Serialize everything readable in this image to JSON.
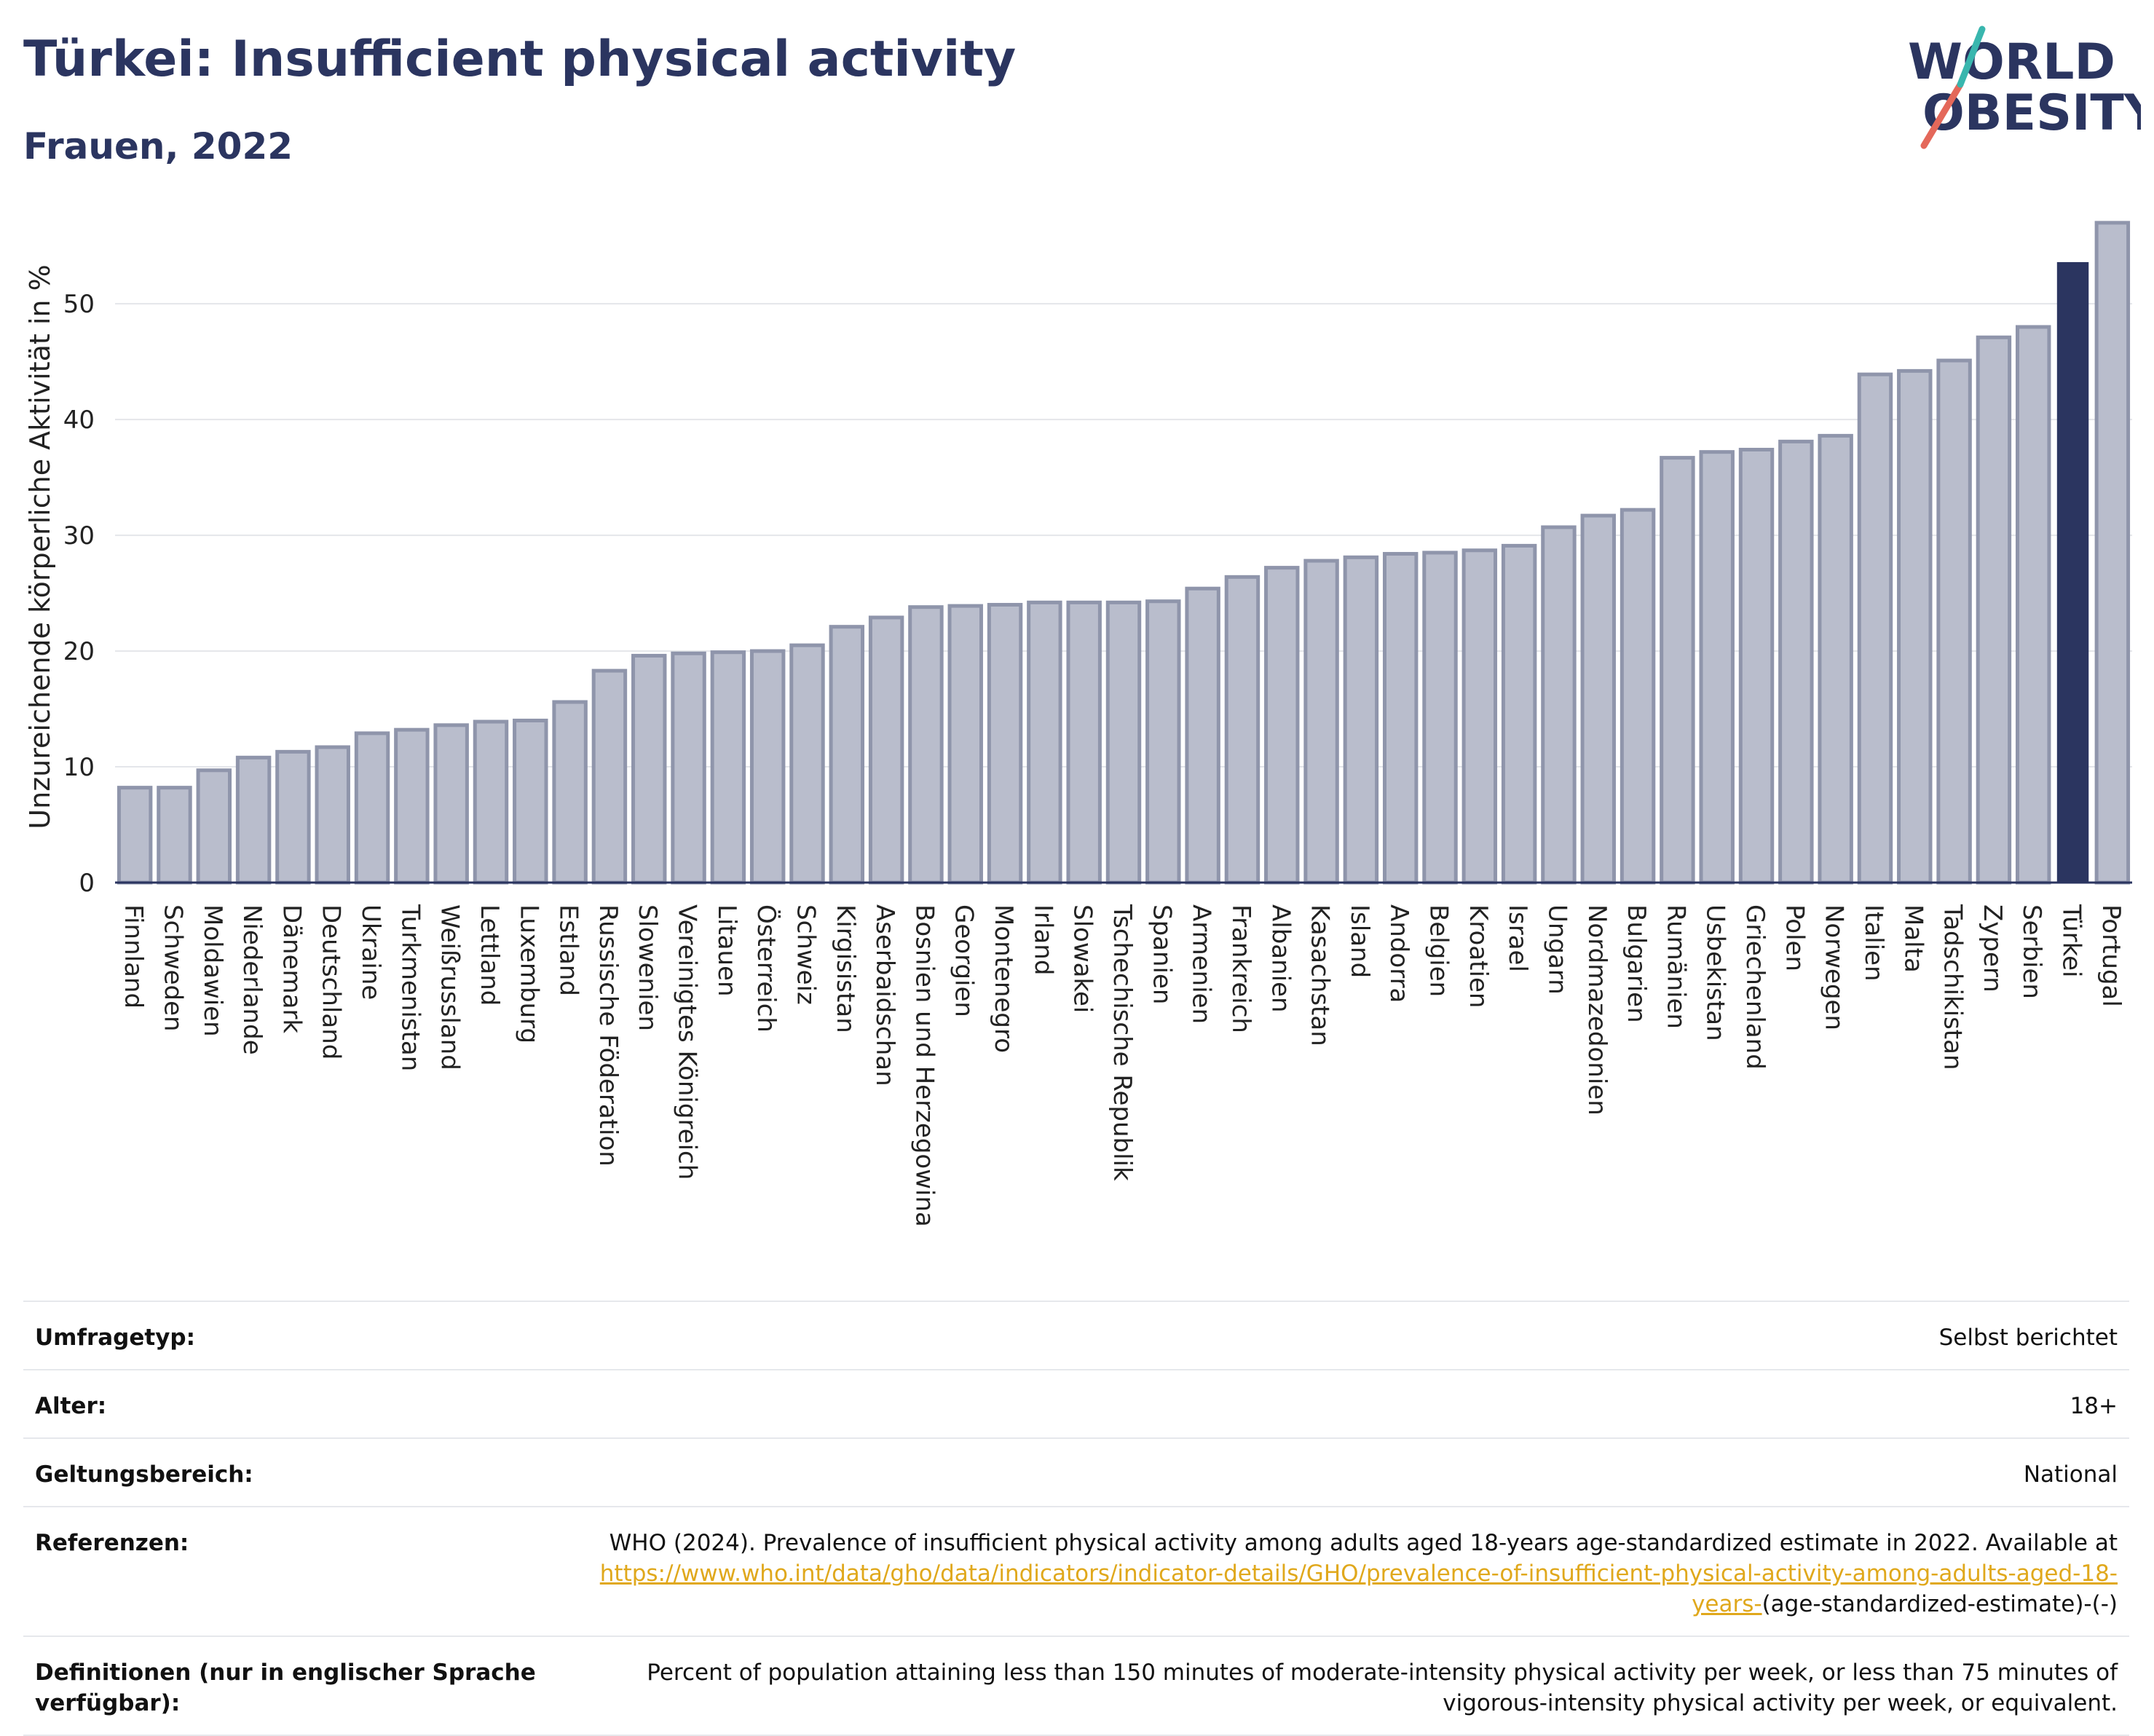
{
  "header": {
    "title": "Türkei: Insufficient physical activity",
    "subtitle": "Frauen, 2022"
  },
  "logo": {
    "line1": "WORLD",
    "line2": "OBESITY"
  },
  "colors": {
    "bar": "#b9bdcc",
    "bar_edge": "#8f95ab",
    "highlight": "#2b3560",
    "text": "#1f2a44"
  },
  "chart_data": {
    "type": "bar",
    "ylabel": "Unzureichende körperliche Aktivität in %",
    "ylim": [
      0,
      58
    ],
    "yticks": [
      0,
      10,
      20,
      30,
      40,
      50
    ],
    "grid": true,
    "highlight": "Türkei",
    "categories": [
      "Finnland",
      "Schweden",
      "Moldawien",
      "Niederlande",
      "Dänemark",
      "Deutschland",
      "Ukraine",
      "Turkmenistan",
      "Weißrussland",
      "Lettland",
      "Luxemburg",
      "Estland",
      "Russische Föderation",
      "Slowenien",
      "Vereinigtes Königreich",
      "Litauen",
      "Österreich",
      "Schweiz",
      "Kirgisistan",
      "Aserbaidschan",
      "Bosnien und Herzegowina",
      "Georgien",
      "Montenegro",
      "Irland",
      "Slowakei",
      "Tschechische Republik",
      "Spanien",
      "Armenien",
      "Frankreich",
      "Albanien",
      "Kasachstan",
      "Island",
      "Andorra",
      "Belgien",
      "Kroatien",
      "Israel",
      "Ungarn",
      "Nordmazedonien",
      "Bulgarien",
      "Rumänien",
      "Usbekistan",
      "Griechenland",
      "Polen",
      "Norwegen",
      "Italien",
      "Malta",
      "Tadschikistan",
      "Zypern",
      "Serbien",
      "Türkei",
      "Portugal"
    ],
    "values": [
      8.2,
      8.2,
      9.7,
      10.8,
      11.3,
      11.7,
      12.9,
      13.2,
      13.6,
      13.9,
      14.0,
      15.6,
      18.3,
      19.6,
      19.8,
      19.9,
      20.0,
      20.5,
      22.1,
      22.9,
      23.8,
      23.9,
      24.0,
      24.2,
      24.2,
      24.2,
      24.3,
      25.4,
      26.4,
      27.2,
      27.8,
      28.1,
      28.4,
      28.5,
      28.7,
      29.1,
      30.7,
      31.7,
      32.2,
      36.7,
      37.2,
      37.4,
      38.1,
      38.6,
      43.9,
      44.2,
      45.1,
      47.1,
      48.0,
      53.6,
      57.0
    ]
  },
  "meta": {
    "survey_label": "Umfragetyp:",
    "survey_value": "Selbst berichtet",
    "age_label": "Alter:",
    "age_value": "18+",
    "scope_label": "Geltungsbereich:",
    "scope_value": "National",
    "ref_label": "Referenzen:",
    "ref_text": "WHO (2024). Prevalence of insufficient physical activity among adults aged 18-years age-standardized estimate in 2022. Available at",
    "ref_link": "https://www.who.int/data/gho/data/indicators/indicator-details/GHO/prevalence-of-insufficient-physical-activity-among-adults-aged-18-years-",
    "ref_suffix": "(age-standardized-estimate)-(-)",
    "def_label": "Definitionen (nur in englischer Sprache verfügbar):",
    "def_text": "Percent of population attaining less than 150 minutes of moderate-intensity physical activity per week, or less than 75 minutes of vigorous-intensity physical activity per week, or equivalent."
  }
}
